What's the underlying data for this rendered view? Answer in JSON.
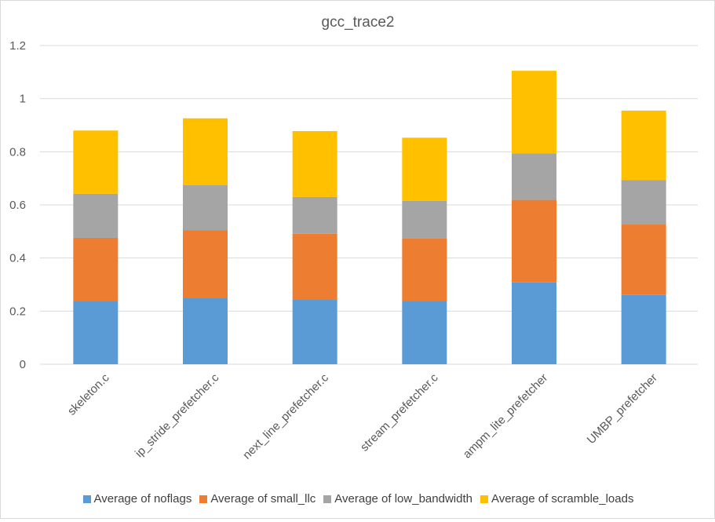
{
  "chart_data": {
    "type": "bar",
    "stacked": true,
    "title": "gcc_trace2",
    "xlabel": "",
    "ylabel": "",
    "ylim": [
      0,
      1.2
    ],
    "yticks": [
      "0",
      "0.2",
      "0.4",
      "0.6",
      "0.8",
      "1",
      "1.2"
    ],
    "grid": true,
    "legend_position": "bottom",
    "categories": [
      "skeleton.c",
      "ip_stride_prefetcher.c",
      "next_line_prefetcher.c",
      "stream_prefetcher.c",
      "ampm_lite_prefetcher",
      "UMBP_prefetcher"
    ],
    "series": [
      {
        "name": "Average of noflags",
        "color": "#5b9bd5",
        "values": [
          0.238,
          0.251,
          0.245,
          0.238,
          0.308,
          0.261
        ]
      },
      {
        "name": "Average of small_llc",
        "color": "#ed7d31",
        "values": [
          0.238,
          0.253,
          0.246,
          0.236,
          0.311,
          0.265
        ]
      },
      {
        "name": "Average of low_bandwidth",
        "color": "#a5a5a5",
        "values": [
          0.166,
          0.171,
          0.139,
          0.141,
          0.175,
          0.168
        ]
      },
      {
        "name": "Average of scramble_loads",
        "color": "#ffc000",
        "values": [
          0.238,
          0.251,
          0.248,
          0.238,
          0.311,
          0.261
        ]
      }
    ]
  }
}
